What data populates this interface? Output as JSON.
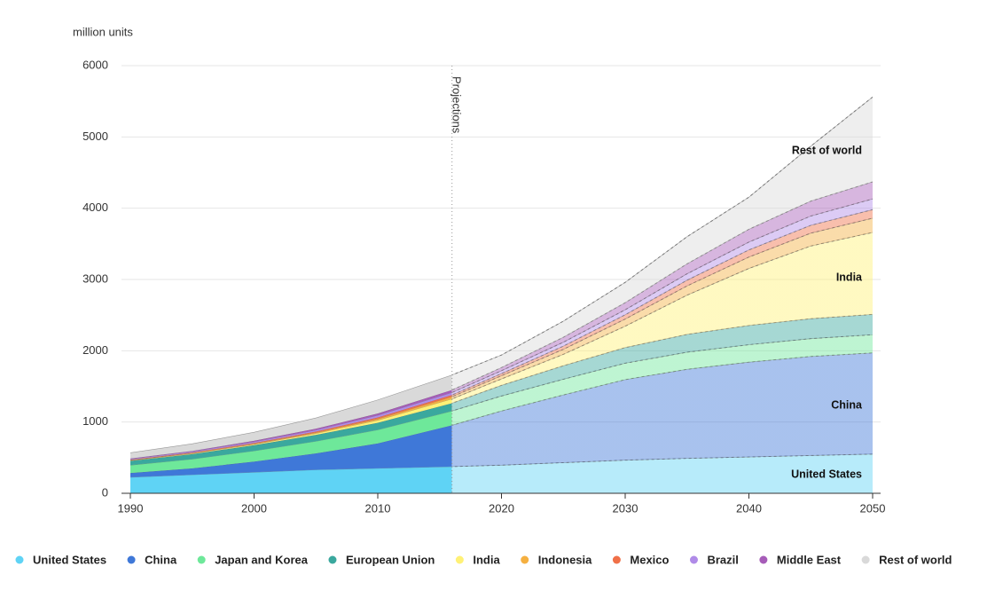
{
  "chart_data": {
    "type": "stacked_area",
    "y_label": "million units",
    "x": [
      1990,
      1995,
      2000,
      2005,
      2010,
      2016,
      2020,
      2025,
      2030,
      2035,
      2040,
      2045,
      2050
    ],
    "xlim": [
      1990,
      2050
    ],
    "xticks": [
      1990,
      2000,
      2010,
      2020,
      2030,
      2040,
      2050
    ],
    "ylim": [
      0,
      6000
    ],
    "yticks": [
      0,
      1000,
      2000,
      3000,
      4000,
      5000,
      6000
    ],
    "grid": true,
    "projection_start": 2016,
    "projection_label": "Projections",
    "annotations": [
      {
        "text": "Rest of world",
        "series": 9,
        "x": 2050,
        "y": 4800
      },
      {
        "text": "India",
        "series": 4,
        "x": 2050,
        "y": 3020
      },
      {
        "text": "China",
        "series": 1,
        "x": 2050,
        "y": 1230
      },
      {
        "text": "United States",
        "series": 0,
        "x": 2050,
        "y": 260
      }
    ],
    "legend": "bottom",
    "series": [
      {
        "name": "United States",
        "color": "#5fd3f5",
        "values": [
          225,
          260,
          295,
          330,
          350,
          375,
          395,
          430,
          465,
          490,
          510,
          530,
          550
        ]
      },
      {
        "name": "China",
        "color": "#3f78d8",
        "values": [
          60,
          90,
          150,
          230,
          350,
          580,
          760,
          950,
          1130,
          1250,
          1330,
          1390,
          1420
        ]
      },
      {
        "name": "Japan and Korea",
        "color": "#6ee89a",
        "values": [
          110,
          130,
          150,
          170,
          190,
          200,
          210,
          220,
          230,
          240,
          245,
          250,
          255
        ]
      },
      {
        "name": "European Union",
        "color": "#3aa89e",
        "values": [
          60,
          70,
          80,
          90,
          100,
          110,
          150,
          190,
          220,
          250,
          270,
          280,
          285
        ]
      },
      {
        "name": "India",
        "color": "#fff176",
        "values": [
          5,
          8,
          12,
          20,
          35,
          60,
          90,
          160,
          300,
          550,
          800,
          1020,
          1150
        ]
      },
      {
        "name": "Indonesia",
        "color": "#f5b041",
        "values": [
          3,
          5,
          8,
          12,
          20,
          30,
          45,
          70,
          100,
          130,
          160,
          180,
          200
        ]
      },
      {
        "name": "Mexico",
        "color": "#f07048",
        "values": [
          8,
          10,
          12,
          15,
          20,
          25,
          30,
          45,
          60,
          80,
          100,
          110,
          120
        ]
      },
      {
        "name": "Brazil",
        "color": "#b08be8",
        "values": [
          10,
          12,
          15,
          20,
          30,
          35,
          40,
          55,
          70,
          90,
          110,
          130,
          150
        ]
      },
      {
        "name": "Middle East",
        "color": "#a65cb8",
        "values": [
          8,
          10,
          15,
          20,
          25,
          35,
          45,
          70,
          100,
          140,
          180,
          210,
          240
        ]
      },
      {
        "name": "Rest of world",
        "color": "#d9d9d9",
        "values": [
          80,
          100,
          120,
          150,
          190,
          210,
          175,
          225,
          285,
          380,
          450,
          770,
          1190
        ]
      }
    ]
  }
}
